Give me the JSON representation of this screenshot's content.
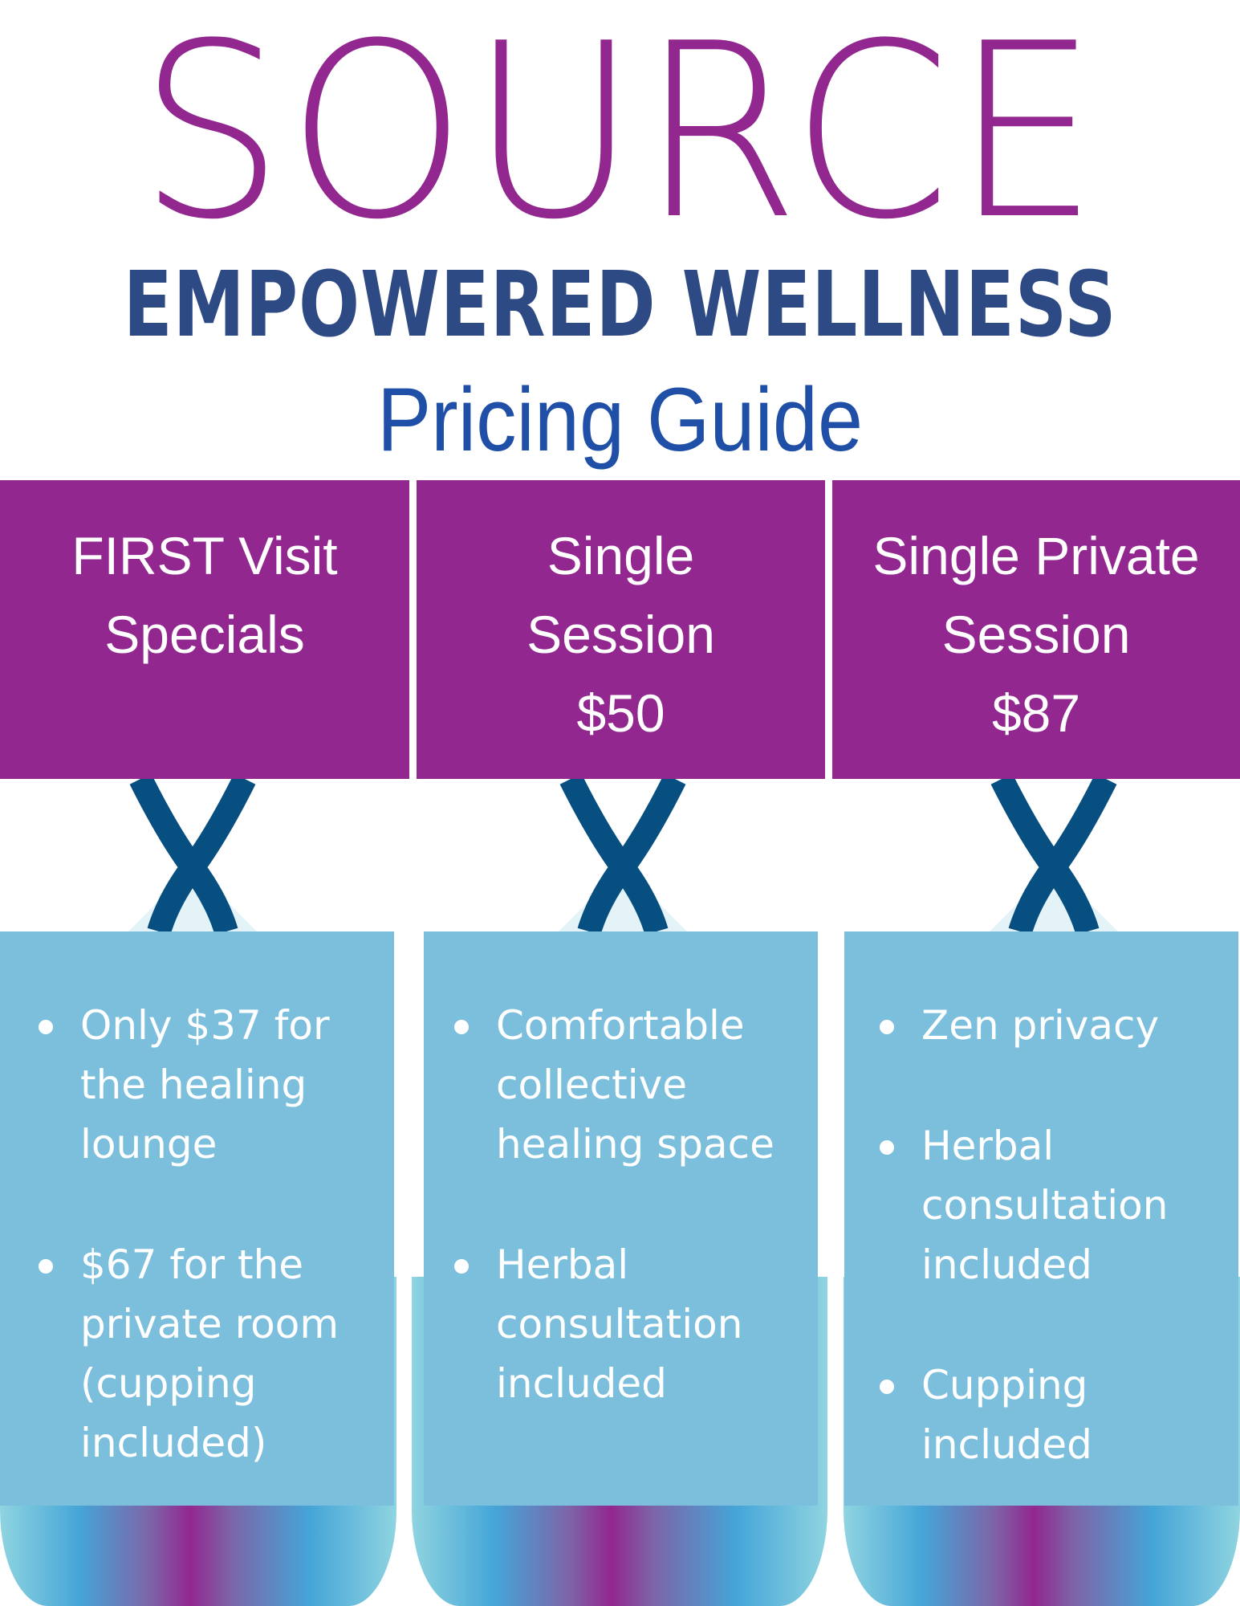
{
  "brand": {
    "logo": "SOURCE",
    "tagline": "EMPOWERED WELLNESS",
    "colors": {
      "purple": "#92278f",
      "navy": "#2e4a84",
      "blue": "#1f4fa6",
      "light_blue": "#7bbfdd",
      "ribbon": "#064f80"
    }
  },
  "title": "Pricing Guide",
  "columns": [
    {
      "header": [
        "FIRST Visit",
        "Specials"
      ],
      "bullets": [
        "Only $37 for the healing lounge",
        "$67 for the private room (cupping included)"
      ]
    },
    {
      "header": [
        "Single",
        "Session",
        "$50"
      ],
      "bullets": [
        "Comfortable collective healing space",
        "Herbal consultation included"
      ]
    },
    {
      "header": [
        "Single Private",
        "Session",
        "$87"
      ],
      "bullets": [
        "Zen privacy",
        "Herbal consultation included",
        "Cupping included"
      ]
    }
  ]
}
